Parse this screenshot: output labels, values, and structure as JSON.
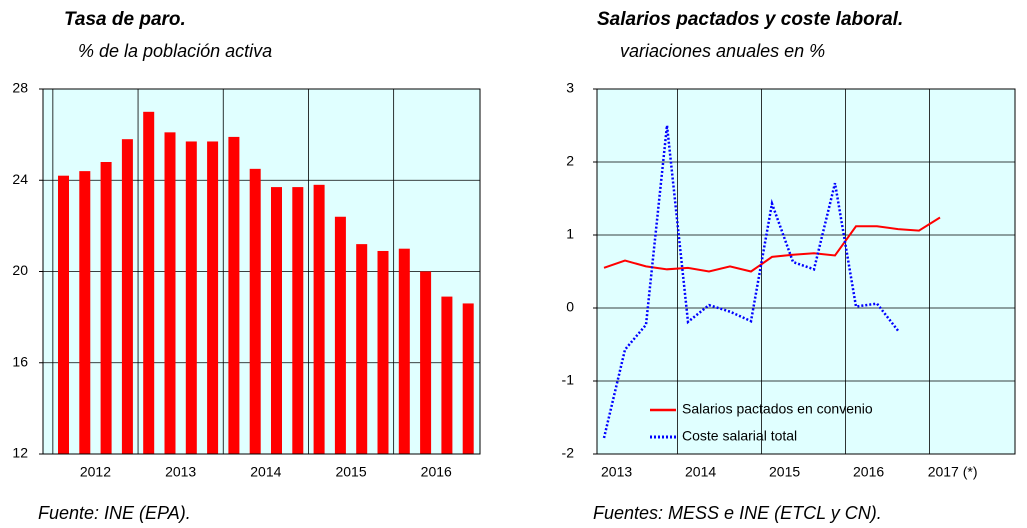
{
  "chart_data": [
    {
      "type": "bar",
      "title": "Tasa de paro.",
      "subtitle": "% de la población activa",
      "source": "Fuente: INE (EPA).",
      "categories": [
        null,
        "2012",
        null,
        null,
        null,
        "2013",
        null,
        null,
        null,
        "2014",
        null,
        null,
        null,
        "2015",
        null,
        null,
        null,
        "2016",
        null,
        null
      ],
      "values": [
        24.2,
        24.4,
        24.8,
        25.8,
        27.0,
        26.1,
        25.7,
        25.7,
        25.9,
        24.5,
        23.7,
        23.7,
        23.8,
        22.4,
        21.2,
        20.9,
        21.0,
        20.0,
        18.9,
        18.6
      ],
      "color": "#ff0000",
      "ylim": [
        12,
        28
      ],
      "yticks": [
        12,
        16,
        20,
        24,
        28
      ],
      "grid": true
    },
    {
      "type": "line",
      "title": "Salarios pactados y coste laboral.",
      "subtitle": "variaciones anuales en %",
      "source": "Fuentes: MESS e INE (ETCL y CN).",
      "categories": [
        "2013",
        null,
        null,
        null,
        "2014",
        null,
        null,
        null,
        "2015",
        null,
        null,
        null,
        "2016",
        null,
        null,
        null,
        "2017 (*)"
      ],
      "series": [
        {
          "name": "Salarios pactados en convenio",
          "color": "#ff0000",
          "style": "solid",
          "values": [
            0.55,
            0.65,
            0.57,
            0.53,
            0.55,
            0.5,
            0.57,
            0.5,
            0.7,
            0.73,
            0.75,
            0.72,
            1.12,
            1.12,
            1.08,
            1.06,
            1.24
          ]
        },
        {
          "name": "Coste salarial total",
          "color": "#0000ff",
          "style": "dotted",
          "values": [
            -1.78,
            -0.57,
            -0.23,
            2.5,
            -0.19,
            0.04,
            -0.05,
            -0.18,
            1.43,
            0.63,
            0.53,
            1.71,
            0.02,
            0.06,
            -0.31,
            null,
            null
          ]
        }
      ],
      "ylim": [
        -2,
        3
      ],
      "yticks": [
        -2,
        -1,
        0,
        1,
        2,
        3
      ],
      "grid": true,
      "legend": "lower center"
    }
  ]
}
